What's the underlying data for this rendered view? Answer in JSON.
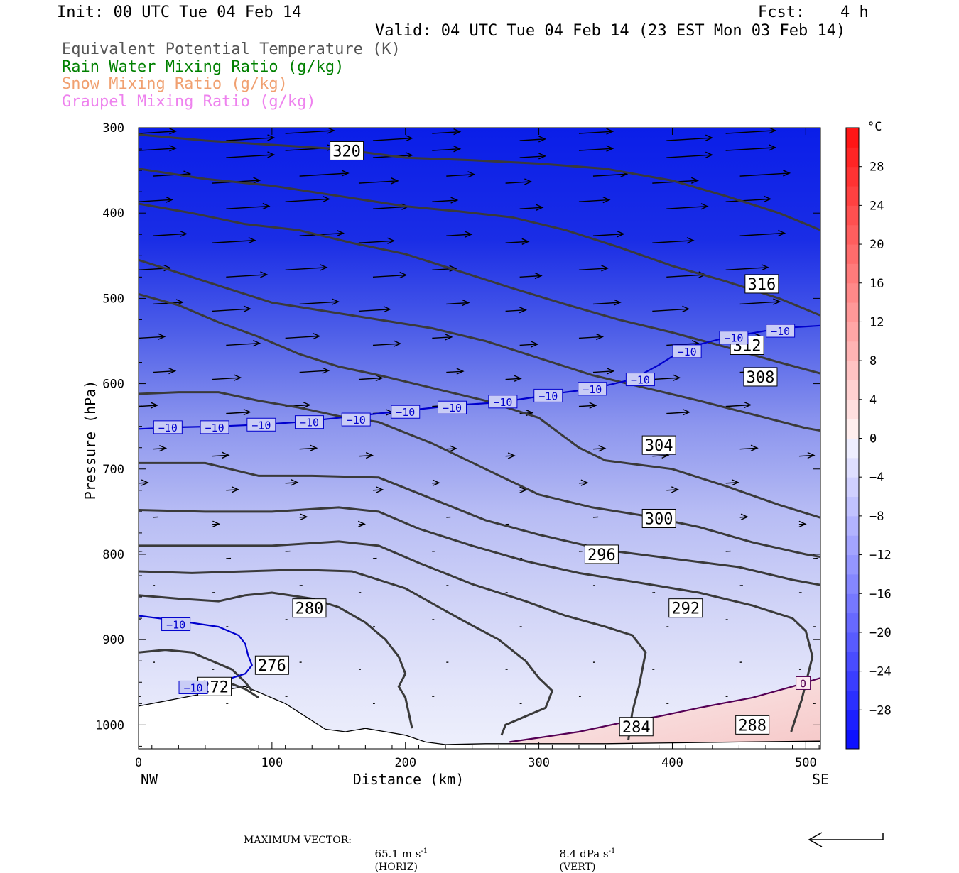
{
  "header": {
    "init": "Init: 00 UTC Tue 04 Feb 14",
    "fcst_label": "Fcst:",
    "fcst_value": "4 h",
    "valid": "Valid: 04 UTC Tue 04 Feb 14 (23 EST Mon 03 Feb 14)"
  },
  "legend": {
    "items": [
      {
        "label": "Equivalent Potential Temperature (K)",
        "color": "#555555"
      },
      {
        "label": "Rain Water Mixing Ratio (g/kg)",
        "color": "#008000"
      },
      {
        "label": "Snow Mixing Ratio (g/kg)",
        "color": "#f0a070"
      },
      {
        "label": "Graupel Mixing Ratio (g/kg)",
        "color": "#ee82ee"
      }
    ]
  },
  "chart_data": {
    "type": "heatmap",
    "xlabel": "Distance (km)",
    "ylabel": "Pressure (hPa)",
    "xlim": [
      0,
      511
    ],
    "ylim": [
      1028,
      300
    ],
    "y_scale": "linear, inverted",
    "x_ticks": [
      0,
      100,
      200,
      300,
      400,
      500
    ],
    "y_ticks": [
      300,
      400,
      500,
      600,
      700,
      800,
      900,
      1000
    ],
    "x_end_labels": {
      "left": "NW",
      "right": "SE"
    },
    "colorbar": {
      "unit": "°C",
      "ticks": [
        28,
        24,
        20,
        16,
        12,
        8,
        4,
        0,
        -4,
        -8,
        -12,
        -16,
        -20,
        -24,
        -28
      ],
      "range": [
        -32,
        32
      ]
    },
    "theta_e_contours": [
      {
        "value": 272,
        "points": [
          [
            35,
            960
          ],
          [
            60,
            955
          ],
          [
            70,
            952
          ],
          [
            80,
            958
          ],
          [
            90,
            968
          ]
        ],
        "label_at": [
          57,
          955
        ]
      },
      {
        "value": 276,
        "points": [
          [
            0,
            915
          ],
          [
            20,
            912
          ],
          [
            40,
            915
          ],
          [
            55,
            925
          ],
          [
            70,
            935
          ],
          [
            80,
            950
          ],
          [
            85,
            960
          ]
        ],
        "label_at": [
          100,
          930
        ]
      },
      {
        "value": 280,
        "points": [
          [
            0,
            848
          ],
          [
            30,
            852
          ],
          [
            60,
            855
          ],
          [
            80,
            848
          ],
          [
            100,
            845
          ],
          [
            130,
            852
          ],
          [
            150,
            862
          ],
          [
            170,
            880
          ],
          [
            185,
            900
          ],
          [
            195,
            920
          ],
          [
            200,
            940
          ],
          [
            195,
            955
          ],
          [
            200,
            968
          ],
          [
            205,
            1004
          ]
        ],
        "label_at": [
          128,
          863
        ]
      },
      {
        "value": 284,
        "points": [
          [
            0,
            820
          ],
          [
            40,
            822
          ],
          [
            80,
            820
          ],
          [
            120,
            818
          ],
          [
            160,
            820
          ],
          [
            200,
            840
          ],
          [
            240,
            875
          ],
          [
            270,
            900
          ],
          [
            290,
            925
          ],
          [
            300,
            945
          ],
          [
            310,
            960
          ],
          [
            305,
            980
          ],
          [
            290,
            990
          ],
          [
            275,
            1000
          ],
          [
            272,
            1012
          ]
        ],
        "label_at": [
          373,
          1002
        ]
      },
      {
        "value": 288,
        "points": [
          [
            0,
            790
          ],
          [
            50,
            790
          ],
          [
            100,
            790
          ],
          [
            150,
            785
          ],
          [
            180,
            790
          ],
          [
            210,
            810
          ],
          [
            250,
            835
          ],
          [
            290,
            855
          ],
          [
            320,
            872
          ],
          [
            350,
            885
          ],
          [
            370,
            895
          ],
          [
            380,
            915
          ],
          [
            375,
            955
          ],
          [
            370,
            985
          ],
          [
            367,
            1018
          ]
        ],
        "label_at": [
          460,
          1000
        ]
      },
      {
        "value": 292,
        "points": [
          [
            0,
            748
          ],
          [
            50,
            750
          ],
          [
            100,
            750
          ],
          [
            150,
            745
          ],
          [
            180,
            750
          ],
          [
            210,
            770
          ],
          [
            250,
            790
          ],
          [
            290,
            808
          ],
          [
            330,
            822
          ],
          [
            370,
            832
          ],
          [
            420,
            845
          ],
          [
            460,
            860
          ],
          [
            490,
            875
          ],
          [
            500,
            890
          ],
          [
            505,
            920
          ],
          [
            497,
            970
          ],
          [
            489,
            1008
          ]
        ],
        "label_at": [
          410,
          863
        ]
      },
      {
        "value": 296,
        "points": [
          [
            0,
            693
          ],
          [
            50,
            693
          ],
          [
            90,
            708
          ],
          [
            130,
            708
          ],
          [
            180,
            710
          ],
          [
            220,
            735
          ],
          [
            260,
            760
          ],
          [
            300,
            777
          ],
          [
            350,
            795
          ],
          [
            400,
            805
          ],
          [
            450,
            815
          ],
          [
            490,
            830
          ],
          [
            511,
            836
          ]
        ],
        "label_at": [
          347,
          800
        ]
      },
      {
        "value": 300,
        "points": [
          [
            0,
            612
          ],
          [
            30,
            610
          ],
          [
            60,
            610
          ],
          [
            90,
            620
          ],
          [
            120,
            628
          ],
          [
            150,
            638
          ],
          [
            180,
            645
          ],
          [
            220,
            670
          ],
          [
            260,
            700
          ],
          [
            300,
            730
          ],
          [
            340,
            745
          ],
          [
            380,
            755
          ],
          [
            420,
            768
          ],
          [
            460,
            786
          ],
          [
            500,
            800
          ],
          [
            511,
            803
          ]
        ],
        "label_at": [
          390,
          758
        ]
      },
      {
        "value": 304,
        "points": [
          [
            0,
            495
          ],
          [
            30,
            508
          ],
          [
            60,
            528
          ],
          [
            90,
            545
          ],
          [
            120,
            565
          ],
          [
            150,
            580
          ],
          [
            180,
            590
          ],
          [
            220,
            605
          ],
          [
            260,
            620
          ],
          [
            300,
            640
          ],
          [
            330,
            675
          ],
          [
            350,
            690
          ],
          [
            400,
            700
          ],
          [
            440,
            720
          ],
          [
            480,
            742
          ],
          [
            511,
            757
          ]
        ],
        "label_at": [
          390,
          672
        ]
      },
      {
        "value": 308,
        "points": [
          [
            0,
            455
          ],
          [
            30,
            470
          ],
          [
            60,
            485
          ],
          [
            100,
            505
          ],
          [
            140,
            515
          ],
          [
            180,
            525
          ],
          [
            220,
            535
          ],
          [
            260,
            550
          ],
          [
            300,
            570
          ],
          [
            340,
            590
          ],
          [
            380,
            605
          ],
          [
            420,
            620
          ],
          [
            460,
            636
          ],
          [
            500,
            652
          ],
          [
            511,
            655
          ]
        ],
        "label_at": [
          466,
          592
        ]
      },
      {
        "value": 312,
        "points": [
          [
            0,
            389
          ],
          [
            40,
            400
          ],
          [
            80,
            413
          ],
          [
            120,
            420
          ],
          [
            160,
            435
          ],
          [
            200,
            448
          ],
          [
            240,
            468
          ],
          [
            280,
            488
          ],
          [
            320,
            507
          ],
          [
            360,
            525
          ],
          [
            400,
            540
          ],
          [
            440,
            557
          ],
          [
            480,
            575
          ],
          [
            511,
            588
          ]
        ],
        "label_at": [
          456,
          555
        ]
      },
      {
        "value": 316,
        "points": [
          [
            0,
            348
          ],
          [
            50,
            360
          ],
          [
            100,
            368
          ],
          [
            150,
            380
          ],
          [
            200,
            392
          ],
          [
            240,
            398
          ],
          [
            280,
            405
          ],
          [
            320,
            420
          ],
          [
            360,
            440
          ],
          [
            400,
            462
          ],
          [
            440,
            480
          ],
          [
            480,
            500
          ],
          [
            511,
            520
          ]
        ],
        "label_at": [
          467,
          483
        ]
      },
      {
        "value": 320,
        "points": [
          [
            0,
            308
          ],
          [
            50,
            315
          ],
          [
            100,
            320
          ],
          [
            150,
            325
          ],
          [
            200,
            335
          ],
          [
            250,
            338
          ],
          [
            300,
            342
          ],
          [
            350,
            348
          ],
          [
            400,
            362
          ],
          [
            440,
            380
          ],
          [
            480,
            400
          ],
          [
            511,
            420
          ]
        ],
        "label_at": [
          156,
          327
        ]
      }
    ],
    "temperature_contours": [
      {
        "value": -10,
        "color": "#0000cd",
        "points": [
          [
            0,
            653
          ],
          [
            30,
            651
          ],
          [
            60,
            650
          ],
          [
            90,
            648
          ],
          [
            120,
            645
          ],
          [
            150,
            640
          ],
          [
            180,
            635
          ],
          [
            210,
            630
          ],
          [
            240,
            625
          ],
          [
            270,
            622
          ],
          [
            300,
            615
          ],
          [
            320,
            610
          ],
          [
            340,
            606
          ],
          [
            370,
            595
          ],
          [
            390,
            578
          ],
          [
            410,
            558
          ],
          [
            440,
            546
          ],
          [
            470,
            538
          ],
          [
            490,
            534
          ],
          [
            511,
            532
          ]
        ],
        "label_positions": [
          [
            22,
            651
          ],
          [
            57,
            651
          ],
          [
            92,
            648
          ],
          [
            128,
            645
          ],
          [
            163,
            642
          ],
          [
            200,
            633
          ],
          [
            235,
            628
          ],
          [
            273,
            621
          ],
          [
            307,
            614
          ],
          [
            340,
            606
          ],
          [
            376,
            595
          ],
          [
            411,
            562
          ],
          [
            446,
            546
          ],
          [
            481,
            538
          ]
        ]
      },
      {
        "value": -10,
        "color": "#0000cd",
        "points": [
          [
            0,
            872
          ],
          [
            30,
            878
          ],
          [
            60,
            885
          ],
          [
            75,
            895
          ],
          [
            80,
            905
          ],
          [
            82,
            918
          ],
          [
            85,
            930
          ],
          [
            80,
            940
          ],
          [
            70,
            945
          ],
          [
            60,
            950
          ],
          [
            50,
            955
          ],
          [
            40,
            958
          ]
        ],
        "label_positions": [
          [
            28,
            882
          ],
          [
            41,
            956
          ]
        ]
      },
      {
        "value": 0,
        "color": "#550055",
        "points": [
          [
            278,
            1020
          ],
          [
            300,
            1015
          ],
          [
            330,
            1008
          ],
          [
            360,
            998
          ],
          [
            390,
            990
          ],
          [
            420,
            980
          ],
          [
            460,
            968
          ],
          [
            490,
            955
          ],
          [
            511,
            945
          ]
        ],
        "label_positions": [
          [
            498,
            951
          ]
        ]
      }
    ]
  },
  "footer": {
    "max_vector": "MAXIMUM VECTOR:",
    "horiz_value": "65.1 m s",
    "horiz_exp": "-1",
    "horiz_tag": "(HORIZ)",
    "vert_value": "8.4 dPa s",
    "vert_exp": "-1",
    "vert_tag": "(VERT)"
  }
}
